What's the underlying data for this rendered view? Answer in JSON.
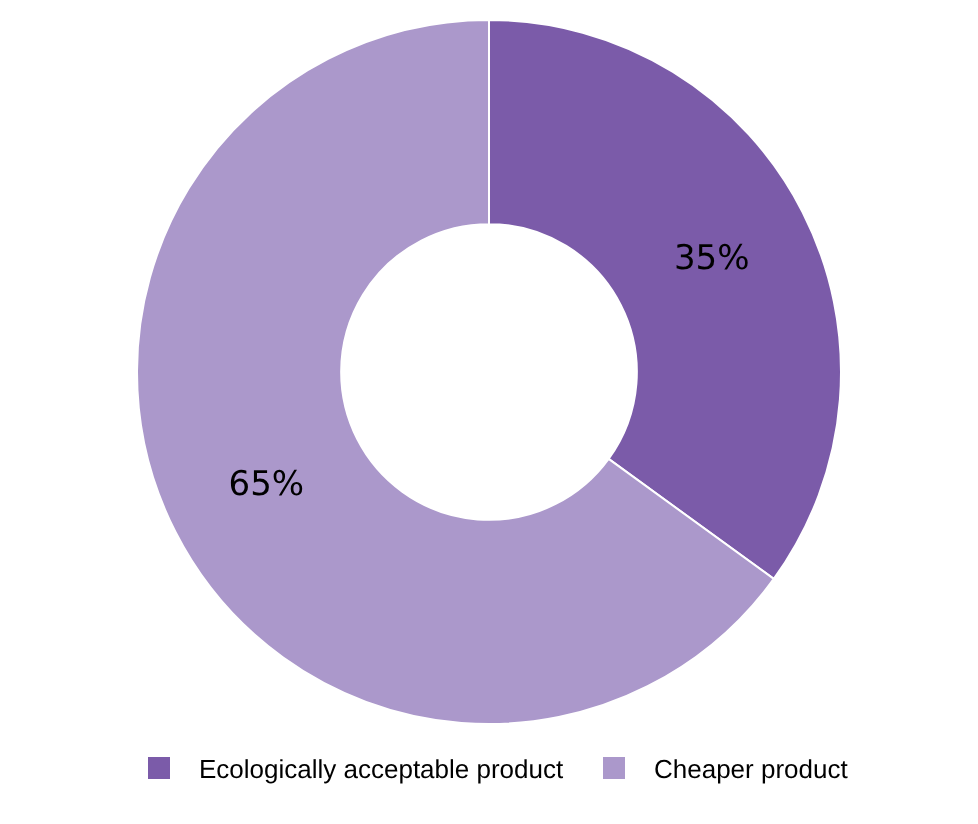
{
  "chart_data": {
    "type": "donut",
    "categories": [
      "Ecologically acceptable product",
      "Cheaper product"
    ],
    "values": [
      35,
      65
    ],
    "colors": [
      "#7b5ba9",
      "#ab98cb"
    ],
    "value_labels": [
      "35%",
      "65%"
    ],
    "legend": "bottom"
  }
}
